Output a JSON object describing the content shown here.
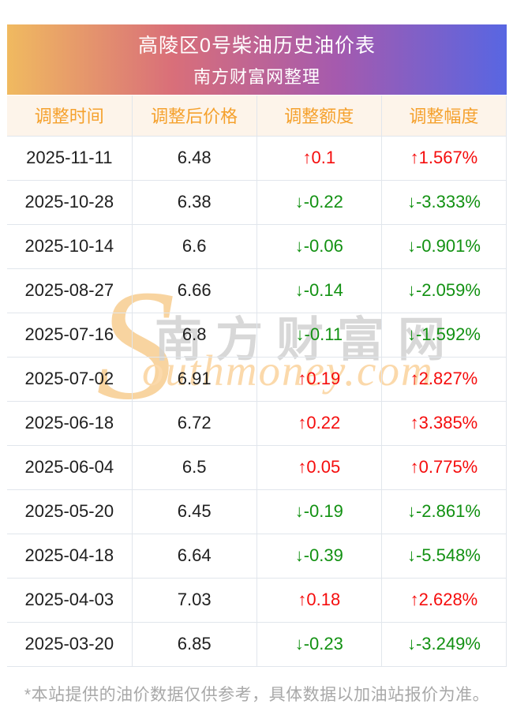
{
  "banner": {
    "title": "高陵区0号柴油历史油价表",
    "subtitle": "南方财富网整理"
  },
  "table": {
    "columns": [
      "调整时间",
      "调整后价格",
      "调整额度",
      "调整幅度"
    ],
    "rows": [
      {
        "date": "2025-11-11",
        "price": "6.48",
        "change": "↑0.1",
        "pct": "↑1.567%",
        "direction": "up"
      },
      {
        "date": "2025-10-28",
        "price": "6.38",
        "change": "↓-0.22",
        "pct": "↓-3.333%",
        "direction": "down"
      },
      {
        "date": "2025-10-14",
        "price": "6.6",
        "change": "↓-0.06",
        "pct": "↓-0.901%",
        "direction": "down"
      },
      {
        "date": "2025-08-27",
        "price": "6.66",
        "change": "↓-0.14",
        "pct": "↓-2.059%",
        "direction": "down"
      },
      {
        "date": "2025-07-16",
        "price": "6.8",
        "change": "↓-0.11",
        "pct": "↓-1.592%",
        "direction": "down"
      },
      {
        "date": "2025-07-02",
        "price": "6.91",
        "change": "↑0.19",
        "pct": "↑2.827%",
        "direction": "up"
      },
      {
        "date": "2025-06-18",
        "price": "6.72",
        "change": "↑0.22",
        "pct": "↑3.385%",
        "direction": "up"
      },
      {
        "date": "2025-06-04",
        "price": "6.5",
        "change": "↑0.05",
        "pct": "↑0.775%",
        "direction": "up"
      },
      {
        "date": "2025-05-20",
        "price": "6.45",
        "change": "↓-0.19",
        "pct": "↓-2.861%",
        "direction": "down"
      },
      {
        "date": "2025-04-18",
        "price": "6.64",
        "change": "↓-0.39",
        "pct": "↓-5.548%",
        "direction": "down"
      },
      {
        "date": "2025-04-03",
        "price": "7.03",
        "change": "↑0.18",
        "pct": "↑2.628%",
        "direction": "up"
      },
      {
        "date": "2025-03-20",
        "price": "6.85",
        "change": "↓-0.23",
        "pct": "↓-3.249%",
        "direction": "down"
      }
    ]
  },
  "watermark": {
    "s_letter": "S",
    "cn_text": "南方财富网",
    "en_text": "outhmoney.com"
  },
  "footer": {
    "note": "*本站提供的油价数据仅供参考，具体数据以加油站报价为准。"
  },
  "colors": {
    "up_red": "#f50d0d",
    "down_green": "#129112",
    "header_orange": "#f5a12d",
    "header_bg_cream": "#fdf4ea",
    "banner_gradient_start": "#f0ba60",
    "banner_gradient_mid1": "#d96f79",
    "banner_gradient_mid2": "#a55aae",
    "banner_gradient_end": "#5866e2",
    "border_gray": "#e1e6ec",
    "footnote_gray": "#a8a8a8",
    "watermark_gray": "#d2d2d2",
    "watermark_peach": "#fbd9ab"
  }
}
